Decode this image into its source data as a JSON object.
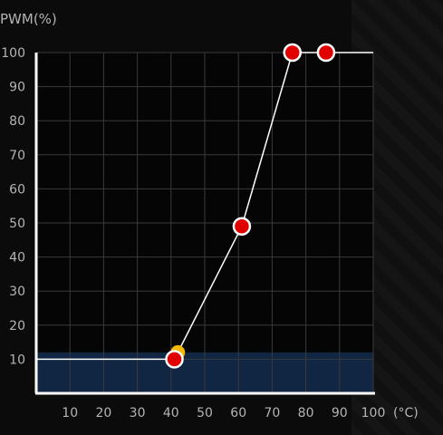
{
  "chart_data": {
    "type": "line",
    "title": "",
    "ylabel": "PWM(%)",
    "xlabel": "(°C)",
    "xlim": [
      0,
      100
    ],
    "ylim": [
      0,
      100
    ],
    "x_ticks": [
      "10",
      "20",
      "30",
      "40",
      "50",
      "60",
      "70",
      "80",
      "90",
      "100"
    ],
    "y_ticks": [
      "10",
      "20",
      "30",
      "40",
      "50",
      "60",
      "70",
      "80",
      "90",
      "100"
    ],
    "grid": true,
    "series": [
      {
        "points": [
          {
            "x": 0,
            "y": 10
          },
          {
            "x": 41,
            "y": 10
          },
          {
            "x": 61,
            "y": 49
          },
          {
            "x": 76,
            "y": 100
          },
          {
            "x": 86,
            "y": 100
          },
          {
            "x": 100,
            "y": 100
          }
        ]
      }
    ],
    "control_points": [
      {
        "x": 41,
        "y": 10
      },
      {
        "x": 61,
        "y": 49
      },
      {
        "x": 76,
        "y": 100
      },
      {
        "x": 86,
        "y": 100
      }
    ],
    "current_point": {
      "x": 42,
      "y": 12
    },
    "current_band_y": 12
  },
  "colors": {
    "background": "#0b0b0b",
    "plot_background": "#050505",
    "grid": "#3a3a3a",
    "axis": "#ffffff",
    "curve": "#ffffff",
    "control_point_fill": "#e00000",
    "control_point_stroke": "#ffffff",
    "current_point": "#f5b800",
    "band": "#122a4a",
    "label": "#b4b4b4"
  }
}
